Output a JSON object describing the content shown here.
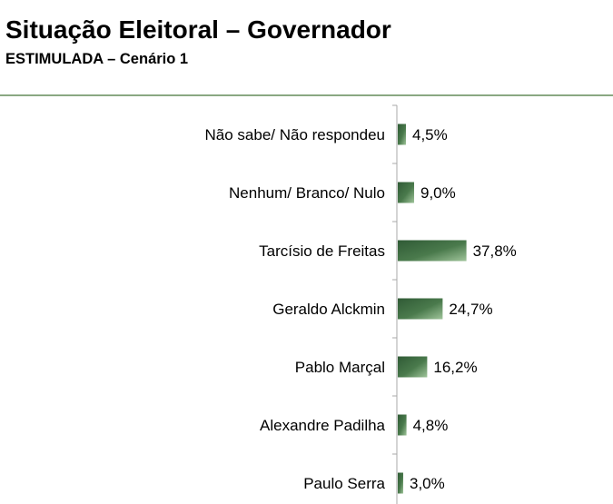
{
  "title": "Situação Eleitoral – Governador",
  "subtitle": "ESTIMULADA – Cenário 1",
  "chart_data": {
    "type": "bar",
    "orientation": "horizontal",
    "categories": [
      "Não sabe/ Não respondeu",
      "Nenhum/ Branco/ Nulo",
      "Tarcísio de Freitas",
      "Geraldo Alckmin",
      "Pablo Marçal",
      "Alexandre Padilha",
      "Paulo Serra"
    ],
    "values": [
      4.5,
      9.0,
      37.8,
      24.7,
      16.2,
      4.8,
      3.0
    ],
    "value_labels": [
      "4,5%",
      "9,0%",
      "37,8%",
      "24,7%",
      "16,2%",
      "4,8%",
      "3,0%"
    ],
    "xlim": [
      0,
      100
    ],
    "grid": false,
    "colors": {
      "bar_dark": "#2f5a35",
      "bar_mid": "#4a7a4c",
      "bar_light": "#9fc49a",
      "axis": "#a9a9a9",
      "rule": "#8aa882"
    }
  }
}
